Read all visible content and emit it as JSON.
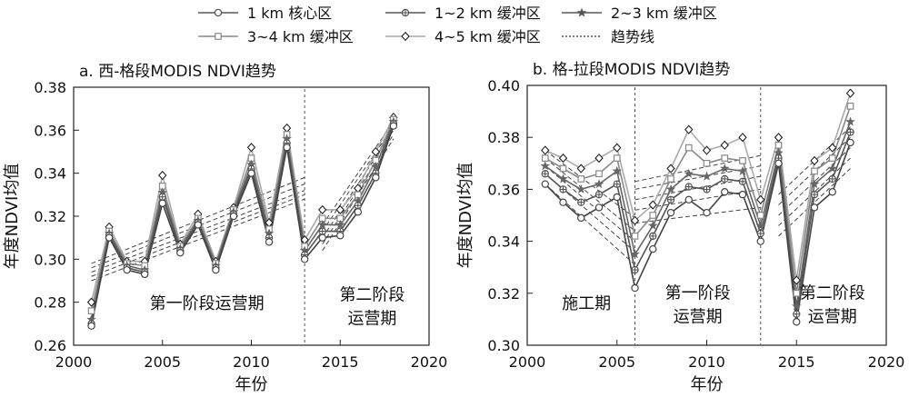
{
  "legend": {
    "items": [
      {
        "label": "1 km 核心区",
        "marker": "circle-open",
        "color": "#555555"
      },
      {
        "label": "1~2 km 缓冲区",
        "marker": "circle-cross",
        "color": "#555555"
      },
      {
        "label": "2~3 km 缓冲区",
        "marker": "star",
        "color": "#555555"
      },
      {
        "label": "3~4 km 缓冲区",
        "marker": "square-open",
        "color": "#888888"
      },
      {
        "label": "4~5 km 缓冲区",
        "marker": "diamond-open",
        "color": "#aaaaaa"
      },
      {
        "label": "趋势线",
        "marker": "dotted-line",
        "color": "#333333"
      }
    ]
  },
  "chart_data": [
    {
      "type": "line",
      "title": "a. 西-格段MODIS NDVI趋势",
      "xlabel": "年份",
      "ylabel": "年度NDVI均值",
      "xlim": [
        2000,
        2020
      ],
      "ylim": [
        0.26,
        0.38
      ],
      "xticks": [
        2000,
        2005,
        2010,
        2015,
        2020
      ],
      "yticks": [
        0.26,
        0.28,
        0.3,
        0.32,
        0.34,
        0.36,
        0.38
      ],
      "ytick_labels": [
        "0.26",
        "0.28",
        "0.30",
        "0.32",
        "0.34",
        "0.36",
        "0.38"
      ],
      "x": [
        2001,
        2002,
        2003,
        2004,
        2005,
        2006,
        2007,
        2008,
        2009,
        2010,
        2011,
        2012,
        2013,
        2014,
        2015,
        2016,
        2017,
        2018
      ],
      "series": [
        {
          "name": "1 km 核心区",
          "marker": "circle-open",
          "color": "#444444",
          "values": [
            0.269,
            0.31,
            0.295,
            0.293,
            0.326,
            0.303,
            0.316,
            0.295,
            0.32,
            0.34,
            0.308,
            0.352,
            0.3,
            0.31,
            0.311,
            0.322,
            0.338,
            0.362
          ]
        },
        {
          "name": "1~2 km 缓冲区",
          "marker": "circle-cross",
          "color": "#555555",
          "values": [
            0.27,
            0.311,
            0.296,
            0.294,
            0.329,
            0.304,
            0.317,
            0.296,
            0.321,
            0.342,
            0.31,
            0.354,
            0.302,
            0.313,
            0.313,
            0.325,
            0.34,
            0.363
          ]
        },
        {
          "name": "2~3 km 缓冲区",
          "marker": "star",
          "color": "#666666",
          "values": [
            0.272,
            0.312,
            0.297,
            0.295,
            0.331,
            0.305,
            0.318,
            0.297,
            0.322,
            0.344,
            0.312,
            0.356,
            0.304,
            0.316,
            0.316,
            0.327,
            0.343,
            0.364
          ]
        },
        {
          "name": "3~4 km 缓冲区",
          "marker": "square-open",
          "color": "#888888",
          "values": [
            0.276,
            0.313,
            0.298,
            0.297,
            0.334,
            0.306,
            0.319,
            0.298,
            0.323,
            0.347,
            0.314,
            0.358,
            0.306,
            0.319,
            0.319,
            0.33,
            0.346,
            0.365
          ]
        },
        {
          "name": "4~5 km 缓冲区",
          "marker": "diamond-open",
          "color": "#aaaaaa",
          "values": [
            0.28,
            0.315,
            0.299,
            0.299,
            0.339,
            0.307,
            0.321,
            0.299,
            0.324,
            0.352,
            0.317,
            0.361,
            0.309,
            0.323,
            0.323,
            0.333,
            0.35,
            0.366
          ]
        }
      ],
      "trend_segments": [
        {
          "x": [
            2001,
            2013
          ],
          "y": [
            [
              0.29,
              0.328
            ],
            [
              0.292,
              0.33
            ],
            [
              0.294,
              0.332
            ],
            [
              0.296,
              0.335
            ],
            [
              0.298,
              0.338
            ]
          ]
        },
        {
          "x": [
            2014,
            2018
          ],
          "y": [
            [
              0.304,
              0.356
            ],
            [
              0.307,
              0.358
            ],
            [
              0.31,
              0.36
            ],
            [
              0.313,
              0.362
            ],
            [
              0.316,
              0.364
            ]
          ]
        }
      ],
      "phase_divider_x": [
        2013
      ],
      "phase_labels": [
        {
          "text": "第一阶段运营期",
          "x": 2007.5,
          "y": 0.277
        },
        {
          "text": "第二阶段",
          "x": 2016.8,
          "y": 0.281
        },
        {
          "text": "运营期",
          "x": 2016.8,
          "y": 0.27
        }
      ]
    },
    {
      "type": "line",
      "title": "b. 格-拉段MODIS NDVI趋势",
      "xlabel": "年份",
      "ylabel": "年度NDVI均值",
      "xlim": [
        2000,
        2020
      ],
      "ylim": [
        0.3,
        0.4
      ],
      "xticks": [
        2000,
        2005,
        2010,
        2015,
        2020
      ],
      "yticks": [
        0.3,
        0.32,
        0.34,
        0.36,
        0.38,
        0.4
      ],
      "ytick_labels": [
        "0.30",
        "0.32",
        "0.34",
        "0.36",
        "0.38",
        "0.40"
      ],
      "x": [
        2001,
        2002,
        2003,
        2004,
        2005,
        2006,
        2007,
        2008,
        2009,
        2010,
        2011,
        2012,
        2013,
        2014,
        2015,
        2016,
        2017,
        2018
      ],
      "series": [
        {
          "name": "1 km 核心区",
          "marker": "circle-open",
          "color": "#444444",
          "values": [
            0.362,
            0.355,
            0.349,
            0.353,
            0.357,
            0.322,
            0.337,
            0.351,
            0.356,
            0.351,
            0.359,
            0.358,
            0.34,
            0.37,
            0.309,
            0.353,
            0.359,
            0.378
          ]
        },
        {
          "name": "1~2 km 缓冲区",
          "marker": "circle-cross",
          "color": "#555555",
          "values": [
            0.366,
            0.36,
            0.355,
            0.358,
            0.362,
            0.329,
            0.342,
            0.356,
            0.361,
            0.36,
            0.364,
            0.363,
            0.343,
            0.372,
            0.312,
            0.358,
            0.364,
            0.382
          ]
        },
        {
          "name": "2~3 km 缓冲区",
          "marker": "star",
          "color": "#666666",
          "values": [
            0.369,
            0.364,
            0.36,
            0.362,
            0.367,
            0.335,
            0.346,
            0.36,
            0.366,
            0.365,
            0.368,
            0.367,
            0.346,
            0.374,
            0.315,
            0.362,
            0.368,
            0.386
          ]
        },
        {
          "name": "3~4 km 缓冲区",
          "marker": "square-open",
          "color": "#888888",
          "values": [
            0.372,
            0.368,
            0.364,
            0.366,
            0.372,
            0.342,
            0.35,
            0.364,
            0.376,
            0.37,
            0.372,
            0.371,
            0.35,
            0.377,
            0.32,
            0.367,
            0.372,
            0.392
          ]
        },
        {
          "name": "4~5 km 缓冲区",
          "marker": "diamond-open",
          "color": "#aaaaaa",
          "values": [
            0.375,
            0.372,
            0.368,
            0.372,
            0.376,
            0.348,
            0.354,
            0.368,
            0.383,
            0.375,
            0.377,
            0.38,
            0.356,
            0.38,
            0.325,
            0.371,
            0.376,
            0.397
          ]
        }
      ],
      "trend_segments": [
        {
          "x": [
            2001,
            2006
          ],
          "y": [
            [
              0.362,
              0.331
            ],
            [
              0.366,
              0.336
            ],
            [
              0.369,
              0.34
            ],
            [
              0.372,
              0.344
            ],
            [
              0.375,
              0.349
            ]
          ]
        },
        {
          "x": [
            2006,
            2013
          ],
          "y": [
            [
              0.347,
              0.353
            ],
            [
              0.352,
              0.36
            ],
            [
              0.356,
              0.365
            ],
            [
              0.36,
              0.369
            ],
            [
              0.363,
              0.373
            ]
          ]
        },
        {
          "x": [
            2014,
            2018
          ],
          "y": [
            [
              0.342,
              0.368
            ],
            [
              0.346,
              0.372
            ],
            [
              0.35,
              0.376
            ],
            [
              0.354,
              0.38
            ],
            [
              0.358,
              0.384
            ]
          ]
        }
      ],
      "phase_divider_x": [
        2006,
        2013
      ],
      "phase_labels": [
        {
          "text": "施工期",
          "x": 2003.3,
          "y": 0.314
        },
        {
          "text": "第一阶段",
          "x": 2009.5,
          "y": 0.318
        },
        {
          "text": "运营期",
          "x": 2009.5,
          "y": 0.309
        },
        {
          "text": "第二阶段",
          "x": 2017.0,
          "y": 0.318
        },
        {
          "text": "运营期",
          "x": 2017.0,
          "y": 0.309
        }
      ]
    }
  ]
}
